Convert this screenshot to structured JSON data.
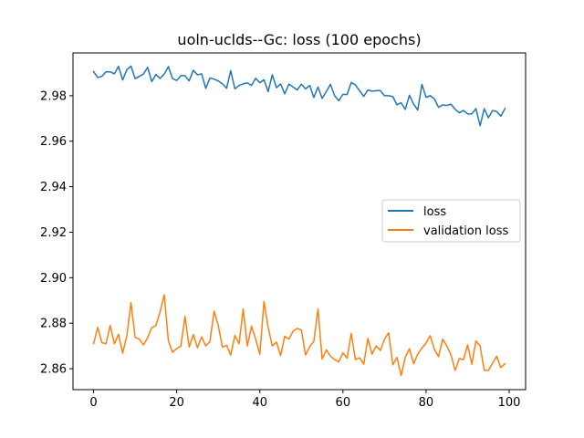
{
  "chart_data": {
    "type": "line",
    "title": "uoln-uclds--Gc: loss (100 epochs)",
    "xlabel": "",
    "ylabel": "",
    "xlim": [
      -4.95,
      103.95
    ],
    "ylim": [
      2.8508,
      2.9988
    ],
    "xticks": [
      0,
      20,
      40,
      60,
      80,
      100
    ],
    "yticks": [
      2.86,
      2.88,
      2.9,
      2.92,
      2.94,
      2.96,
      2.98
    ],
    "ytick_labels": [
      "2.86",
      "2.88",
      "2.90",
      "2.92",
      "2.94",
      "2.96",
      "2.98"
    ],
    "grid": false,
    "legend_position": "center-right",
    "x": [
      0,
      1,
      2,
      3,
      4,
      5,
      6,
      7,
      8,
      9,
      10,
      11,
      12,
      13,
      14,
      15,
      16,
      17,
      18,
      19,
      20,
      21,
      22,
      23,
      24,
      25,
      26,
      27,
      28,
      29,
      30,
      31,
      32,
      33,
      34,
      35,
      36,
      37,
      38,
      39,
      40,
      41,
      42,
      43,
      44,
      45,
      46,
      47,
      48,
      49,
      50,
      51,
      52,
      53,
      54,
      55,
      56,
      57,
      58,
      59,
      60,
      61,
      62,
      63,
      64,
      65,
      66,
      67,
      68,
      69,
      70,
      71,
      72,
      73,
      74,
      75,
      76,
      77,
      78,
      79,
      80,
      81,
      82,
      83,
      84,
      85,
      86,
      87,
      88,
      89,
      90,
      91,
      92,
      93,
      94,
      95,
      96,
      97,
      98,
      99
    ],
    "series": [
      {
        "name": "loss",
        "color": "#1f77b4",
        "values": [
          2.9906,
          2.988,
          2.9885,
          2.9905,
          2.9905,
          2.9896,
          2.9929,
          2.9869,
          2.9914,
          2.993,
          2.9875,
          2.9885,
          2.9895,
          2.9925,
          2.9862,
          2.9893,
          2.9876,
          2.9895,
          2.9928,
          2.9875,
          2.9867,
          2.9888,
          2.9888,
          2.9865,
          2.9912,
          2.9892,
          2.9896,
          2.9832,
          2.9878,
          2.9873,
          2.9865,
          2.9852,
          2.9833,
          2.991,
          2.983,
          2.9845,
          2.9852,
          2.9856,
          2.9845,
          2.9876,
          2.9857,
          2.987,
          2.9818,
          2.9892,
          2.9835,
          2.9852,
          2.9808,
          2.9851,
          2.9838,
          2.9825,
          2.9851,
          2.983,
          2.9845,
          2.9792,
          2.9838,
          2.9788,
          2.9818,
          2.985,
          2.98,
          2.9778,
          2.9806,
          2.9805,
          2.9858,
          2.9848,
          2.9822,
          2.9797,
          2.9825,
          2.982,
          2.9822,
          2.9822,
          2.98,
          2.98,
          2.9796,
          2.976,
          2.9769,
          2.974,
          2.9802,
          2.9763,
          2.9737,
          2.985,
          2.9793,
          2.98,
          2.9786,
          2.9749,
          2.976,
          2.9757,
          2.9763,
          2.974,
          2.9725,
          2.9735,
          2.972,
          2.972,
          2.9743,
          2.9668,
          2.9743,
          2.9703,
          2.9735,
          2.973,
          2.971,
          2.9744
        ]
      },
      {
        "name": "validation loss",
        "color": "#ff7f0e",
        "values": [
          2.871,
          2.8782,
          2.8714,
          2.871,
          2.879,
          2.871,
          2.8751,
          2.8668,
          2.8745,
          2.889,
          2.8738,
          2.873,
          2.8705,
          2.8736,
          2.878,
          2.879,
          2.885,
          2.8925,
          2.8722,
          2.8672,
          2.8688,
          2.87,
          2.883,
          2.8695,
          2.875,
          2.8692,
          2.874,
          2.87,
          2.872,
          2.8853,
          2.879,
          2.8695,
          2.8703,
          2.866,
          2.8746,
          2.871,
          2.8862,
          2.87,
          2.8787,
          2.873,
          2.8663,
          2.8895,
          2.8782,
          2.87,
          2.8717,
          2.8658,
          2.8742,
          2.873,
          2.8765,
          2.8777,
          2.877,
          2.866,
          2.8697,
          2.872,
          2.8863,
          2.8642,
          2.8683,
          2.8655,
          2.864,
          2.863,
          2.867,
          2.8646,
          2.8755,
          2.864,
          2.8648,
          2.862,
          2.8733,
          2.8664,
          2.87,
          2.868,
          2.873,
          2.8758,
          2.8617,
          2.865,
          2.857,
          2.865,
          2.8688,
          2.8622,
          2.8664,
          2.869,
          2.8713,
          2.8745,
          2.8685,
          2.8653,
          2.873,
          2.87,
          2.866,
          2.8592,
          2.8645,
          2.864,
          2.8705,
          2.862,
          2.8722,
          2.87,
          2.8593,
          2.8592,
          2.8625,
          2.8655,
          2.8605,
          2.8622
        ]
      }
    ]
  }
}
